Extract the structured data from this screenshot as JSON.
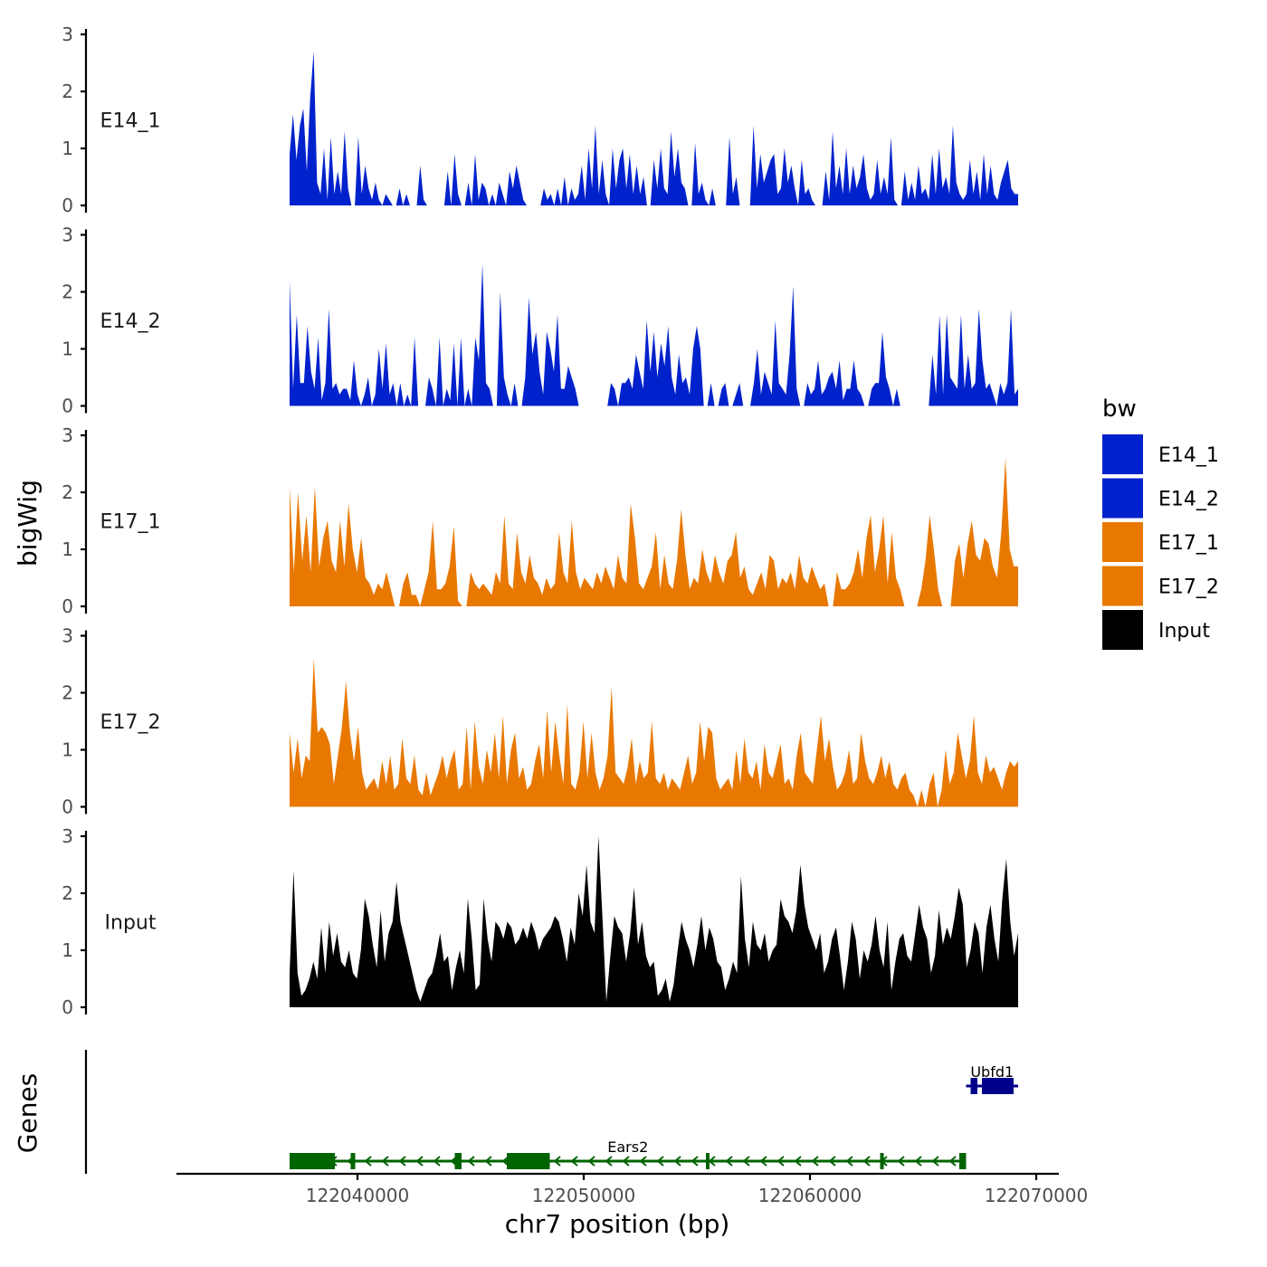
{
  "chart_data": {
    "type": "area",
    "title": "",
    "xlabel": "chr7 position (bp)",
    "ylabel": "bigWig",
    "genes_label": "Genes",
    "xlim": [
      122032000,
      122071000
    ],
    "ylim": [
      0,
      3
    ],
    "x_ticks": [
      122040000,
      122050000,
      122060000,
      122070000
    ],
    "x_tick_labels": [
      "122040000",
      "122050000",
      "122060000",
      "122070000"
    ],
    "y_ticks": [
      0,
      1,
      2,
      3
    ],
    "y_tick_labels": [
      "0",
      "1",
      "2",
      "3"
    ],
    "legend": {
      "title": "bw",
      "position": "right",
      "entries": [
        {
          "label": "E14_1",
          "color": "#0022CC"
        },
        {
          "label": "E14_2",
          "color": "#0022CC"
        },
        {
          "label": "E17_1",
          "color": "#E87800"
        },
        {
          "label": "E17_2",
          "color": "#E87800"
        },
        {
          "label": "Input",
          "color": "#000000"
        }
      ]
    },
    "series": [
      {
        "name": "E14_1",
        "color": "#0022CC",
        "x_start": 122037000,
        "x_end": 122069200,
        "values": [
          0.9,
          1.6,
          0.8,
          1.4,
          1.7,
          0.6,
          1.9,
          2.7,
          0.4,
          0.2,
          1.0,
          0.1,
          1.2,
          0.2,
          0.6,
          0.2,
          1.3,
          0.3,
          0,
          0,
          1.2,
          0.2,
          0.7,
          0.3,
          0.1,
          0.4,
          0.1,
          0,
          0.2,
          0.1,
          0,
          0,
          0.3,
          0,
          0.2,
          0,
          0,
          0,
          0.7,
          0.1,
          0,
          0,
          0,
          0,
          0,
          0,
          0.6,
          0,
          0.9,
          0.2,
          0,
          0,
          0.4,
          0,
          0.9,
          0.1,
          0.4,
          0.3,
          0,
          0.2,
          0,
          0.4,
          0.2,
          0,
          0.6,
          0.3,
          0.7,
          0.4,
          0.1,
          0,
          0,
          0,
          0,
          0,
          0.3,
          0.1,
          0.2,
          0,
          0.3,
          0,
          0.5,
          0,
          0.3,
          0.1,
          0.2,
          0.7,
          0.1,
          1.0,
          0.3,
          1.4,
          0.2,
          0.8,
          0.2,
          0,
          1.0,
          0.3,
          0.8,
          1.0,
          0.3,
          0.9,
          0.2,
          0.7,
          0.2,
          0.5,
          0,
          0,
          0.8,
          0.3,
          1.0,
          0.3,
          0.2,
          1.3,
          0.5,
          1.0,
          0.4,
          0.3,
          0,
          0,
          1.1,
          0.2,
          0.4,
          0.1,
          0,
          0.3,
          0,
          0,
          0,
          0,
          1.2,
          0.2,
          0.5,
          0,
          0,
          0,
          0,
          1.4,
          0.3,
          0.9,
          0.4,
          0.6,
          0.8,
          0.9,
          0.2,
          0.3,
          1.0,
          0.4,
          0.7,
          0.3,
          0,
          0.8,
          0.2,
          0.3,
          0.1,
          0,
          0,
          0,
          0.6,
          0.1,
          1.3,
          0.3,
          0.7,
          0.2,
          1.0,
          0.2,
          0.7,
          0.3,
          0.5,
          0.9,
          0.3,
          0.1,
          0.2,
          0.8,
          0.2,
          0.5,
          0.2,
          1.2,
          0.1,
          0,
          0,
          0.6,
          0.1,
          0.4,
          0.1,
          0.7,
          0.2,
          0.3,
          0.1,
          0.9,
          0.2,
          1.0,
          0.3,
          0.5,
          0.2,
          1.4,
          0.4,
          0.2,
          0.1,
          0.2,
          0.8,
          0.2,
          0.6,
          0.1,
          0.9,
          0.2,
          0.7,
          0.2,
          0.1,
          0.4,
          0.6,
          0.8,
          0.3,
          0.2,
          0.2
        ]
      },
      {
        "name": "E14_2",
        "color": "#0022CC",
        "x_start": 122037000,
        "x_end": 122069200,
        "values": [
          2.2,
          0.3,
          1.6,
          0.4,
          0.4,
          1.4,
          0.6,
          0.3,
          1.2,
          0.1,
          0.4,
          1.7,
          0.3,
          0.4,
          0.2,
          0.3,
          0.3,
          0.1,
          0.8,
          0.2,
          0,
          0.2,
          0.5,
          0,
          0.2,
          1.0,
          0.3,
          1.1,
          0.2,
          0.4,
          0,
          0.4,
          0,
          0.2,
          0,
          1.2,
          0,
          0,
          0,
          0.5,
          0.3,
          0,
          1.2,
          0,
          0.3,
          0.1,
          1.1,
          0,
          1.2,
          0,
          0.3,
          0,
          1.2,
          0.8,
          2.5,
          0.4,
          0.3,
          0,
          0,
          2.0,
          0.5,
          0.2,
          0,
          0.4,
          0,
          0,
          0.5,
          1.9,
          0.9,
          1.3,
          0.6,
          0.2,
          1.3,
          1.0,
          0.6,
          1.6,
          0.3,
          0.3,
          0.7,
          0.5,
          0.3,
          0,
          0,
          0,
          0,
          0,
          0,
          0,
          0,
          0,
          0.4,
          0.3,
          0,
          0.4,
          0.4,
          0.5,
          0.3,
          0.9,
          0.6,
          0.3,
          1.5,
          0.6,
          1.3,
          0.5,
          1.1,
          0.7,
          1.4,
          0.5,
          0.2,
          0.9,
          0.4,
          0.5,
          0.2,
          1.0,
          1.4,
          1.0,
          0,
          0,
          0.4,
          0,
          0,
          0.3,
          0.4,
          0,
          0,
          0.2,
          0.4,
          0,
          0,
          0,
          0.4,
          1.0,
          0.2,
          0.6,
          0.4,
          0.2,
          1.5,
          0.4,
          0.3,
          0.2,
          0.9,
          2.1,
          0.3,
          0,
          0,
          0.4,
          0.2,
          0.3,
          0.8,
          0.2,
          0.3,
          0.5,
          0.6,
          0.3,
          0.8,
          0.1,
          0.3,
          0.3,
          0.8,
          0.3,
          0.2,
          0,
          0,
          0.3,
          0.4,
          0.4,
          1.3,
          0.5,
          0.3,
          0,
          0.3,
          0,
          0,
          0,
          0,
          0,
          0,
          0,
          0,
          0,
          0.9,
          0.2,
          1.6,
          0.2,
          1.6,
          0.5,
          0.4,
          0.3,
          1.6,
          0.3,
          0.9,
          0.3,
          0.4,
          1.7,
          0.8,
          0.3,
          0.4,
          0.2,
          0,
          0.4,
          0.2,
          0.4,
          1.7,
          0.2,
          0.3
        ]
      },
      {
        "name": "E17_1",
        "color": "#E87800",
        "x_start": 122037000,
        "x_end": 122069200,
        "values": [
          2.1,
          0.6,
          2.0,
          0.8,
          1.6,
          0.6,
          2.1,
          0.7,
          1.2,
          1.5,
          0.8,
          0.6,
          1.5,
          0.7,
          1.8,
          1.0,
          0.6,
          1.2,
          0.5,
          0.4,
          0.2,
          0.4,
          0.3,
          0.6,
          0.3,
          0,
          0,
          0.4,
          0.6,
          0.2,
          0.2,
          0,
          0.3,
          0.6,
          1.5,
          0.3,
          0.3,
          0.4,
          0.7,
          1.4,
          0.1,
          0,
          0,
          0.6,
          0.4,
          0.3,
          0.4,
          0.3,
          0.2,
          0.6,
          0.4,
          1.6,
          0.4,
          0.3,
          1.3,
          0.6,
          0.4,
          0.9,
          0.5,
          0.4,
          0.2,
          0.5,
          0.3,
          0.4,
          1.3,
          0.6,
          0.4,
          1.5,
          0.6,
          0.3,
          0.5,
          0.4,
          0.3,
          0.6,
          0.4,
          0.7,
          0.5,
          0.3,
          0.9,
          0.5,
          0.4,
          1.8,
          1.2,
          0.4,
          0.3,
          0.5,
          0.7,
          1.3,
          0.3,
          0.9,
          0.4,
          0.3,
          0.8,
          1.7,
          0.9,
          0.3,
          0.5,
          0.4,
          1.0,
          0.6,
          0.4,
          0.9,
          0.6,
          0.4,
          0.8,
          0.9,
          1.3,
          0.5,
          0.7,
          0.3,
          0.2,
          0.4,
          0.6,
          0.3,
          0.9,
          0.8,
          0.3,
          0.5,
          0.4,
          0.6,
          0.3,
          0.9,
          0.5,
          0.4,
          0.7,
          0.5,
          0.3,
          0.4,
          0,
          0,
          0.6,
          0.3,
          0.3,
          0.4,
          0.6,
          1.0,
          0.5,
          1.2,
          1.6,
          0.6,
          1.0,
          1.6,
          0.4,
          1.3,
          0.5,
          0.3,
          0,
          0,
          0,
          0,
          0.3,
          0.8,
          1.6,
          1.0,
          0.3,
          0,
          0,
          0,
          0.8,
          1.1,
          0.5,
          1.1,
          1.5,
          0.9,
          0.8,
          1.2,
          1.1,
          0.7,
          0.5,
          1.3,
          2.6,
          1.0,
          0.7,
          0.7
        ]
      },
      {
        "name": "E17_2",
        "color": "#E87800",
        "x_start": 122037000,
        "x_end": 122069200,
        "values": [
          1.3,
          0.6,
          1.2,
          0.5,
          0.9,
          0.8,
          2.6,
          1.3,
          1.4,
          1.3,
          1.1,
          0.4,
          0.9,
          1.4,
          2.2,
          1.3,
          0.8,
          1.4,
          0.6,
          0.3,
          0.4,
          0.5,
          0.3,
          0.8,
          0.4,
          0.9,
          0.3,
          0.4,
          1.2,
          0.5,
          0.4,
          0.9,
          0.3,
          0.2,
          0.6,
          0.2,
          0.4,
          0.6,
          0.9,
          0.5,
          0.8,
          1.0,
          0.3,
          0.4,
          1.4,
          0.3,
          1.5,
          0.7,
          0.4,
          1.0,
          0.6,
          1.3,
          0.5,
          1.6,
          0.4,
          1.0,
          1.3,
          0.5,
          0.7,
          0.3,
          0.4,
          0.8,
          1.1,
          0.5,
          1.7,
          0.6,
          1.5,
          0.9,
          0.4,
          1.8,
          0.4,
          0.3,
          0.6,
          1.5,
          0.5,
          1.3,
          0.6,
          0.3,
          0.5,
          0.9,
          2.1,
          0.6,
          0.5,
          0.4,
          0.7,
          1.2,
          0.4,
          0.8,
          0.5,
          0.6,
          1.5,
          0.5,
          0.4,
          0.6,
          0.3,
          0.5,
          0.4,
          0.3,
          0.6,
          0.9,
          0.4,
          0.6,
          1.5,
          0.8,
          1.4,
          1.3,
          0.5,
          0.3,
          0.4,
          0.5,
          0.3,
          1.0,
          0.4,
          1.2,
          0.6,
          0.5,
          0.8,
          0.3,
          1.1,
          0.6,
          0.5,
          0.8,
          1.1,
          0.4,
          0.5,
          0.3,
          0.9,
          1.3,
          0.6,
          0.5,
          0.4,
          1.0,
          1.6,
          0.8,
          1.2,
          0.7,
          0.3,
          0.4,
          0.6,
          1.0,
          0.4,
          0.5,
          1.3,
          0.8,
          0.5,
          0.4,
          0.6,
          0.9,
          0.5,
          0.8,
          0.4,
          0.3,
          0.5,
          0.6,
          0.3,
          0.2,
          0,
          0.3,
          0,
          0.4,
          0.6,
          0,
          0.3,
          1.0,
          0.4,
          0.6,
          1.3,
          0.9,
          0.5,
          0.8,
          1.6,
          0.6,
          0.4,
          0.9,
          0.6,
          0.7,
          0.5,
          0.3,
          0.6,
          0.8,
          0.7,
          0.8
        ]
      },
      {
        "name": "Input",
        "color": "#000000",
        "x_start": 122037000,
        "x_end": 122069200,
        "values": [
          0.6,
          2.4,
          0.6,
          0.2,
          0.3,
          0.5,
          0.8,
          0.5,
          1.4,
          0.6,
          1.5,
          0.9,
          1.3,
          0.8,
          0.7,
          1.0,
          0.6,
          0.5,
          1.0,
          1.9,
          1.6,
          1.1,
          0.7,
          1.7,
          0.8,
          1.3,
          1.5,
          2.2,
          1.5,
          1.2,
          0.9,
          0.6,
          0.3,
          0.1,
          0.3,
          0.5,
          0.6,
          0.9,
          1.3,
          0.8,
          0.9,
          0.3,
          0.7,
          1.0,
          0.6,
          1.9,
          1.2,
          0.3,
          0.4,
          1.9,
          1.2,
          0.8,
          1.5,
          1.4,
          1.2,
          1.5,
          1.4,
          1.1,
          1.2,
          1.4,
          1.2,
          1.5,
          1.3,
          1.0,
          1.2,
          1.3,
          1.4,
          1.6,
          1.5,
          1.2,
          0.8,
          1.4,
          1.1,
          2.0,
          1.6,
          2.5,
          1.5,
          1.3,
          3.0,
          1.6,
          0.1,
          0.9,
          1.6,
          1.4,
          1.3,
          0.8,
          1.3,
          2.1,
          1.1,
          1.5,
          0.9,
          0.7,
          0.8,
          0.2,
          0.3,
          0.5,
          0.1,
          0.4,
          1.0,
          1.5,
          1.2,
          1.0,
          0.7,
          1.1,
          1.6,
          1.0,
          1.4,
          1.2,
          0.8,
          0.7,
          0.3,
          0.5,
          0.8,
          0.6,
          2.3,
          1.2,
          0.7,
          1.5,
          1.1,
          1.0,
          1.3,
          0.8,
          1.0,
          1.1,
          1.9,
          1.6,
          1.5,
          1.3,
          1.7,
          2.5,
          1.8,
          1.4,
          1.2,
          1.0,
          1.3,
          0.6,
          0.8,
          1.2,
          1.4,
          0.9,
          0.3,
          0.8,
          1.5,
          1.2,
          0.5,
          1.0,
          0.8,
          1.1,
          1.6,
          1.0,
          0.7,
          1.5,
          0.3,
          0.8,
          1.2,
          1.3,
          0.9,
          0.8,
          1.3,
          1.8,
          1.4,
          1.2,
          0.6,
          0.9,
          1.7,
          1.1,
          1.4,
          1.2,
          1.6,
          2.1,
          1.8,
          0.7,
          1.0,
          1.5,
          1.3,
          0.6,
          1.4,
          1.8,
          1.2,
          0.8,
          1.9,
          2.6,
          1.5,
          0.9,
          1.3
        ]
      }
    ],
    "genes": [
      {
        "name": "Ears2",
        "color": "#006400",
        "strand": "-",
        "start": 122037000,
        "end": 122066900,
        "exons": [
          [
            122037000,
            122039000
          ],
          [
            122039700,
            122039900
          ],
          [
            122044300,
            122044600
          ],
          [
            122046600,
            122048500
          ],
          [
            122055400,
            122055500
          ],
          [
            122063100,
            122063200
          ],
          [
            122066600,
            122066900
          ]
        ]
      },
      {
        "name": "Ubfd1",
        "color": "#00008B",
        "strand": "+",
        "start": 122066900,
        "end": 122069200,
        "exons": [
          [
            122067100,
            122067400
          ],
          [
            122067600,
            122069000
          ]
        ]
      }
    ]
  }
}
